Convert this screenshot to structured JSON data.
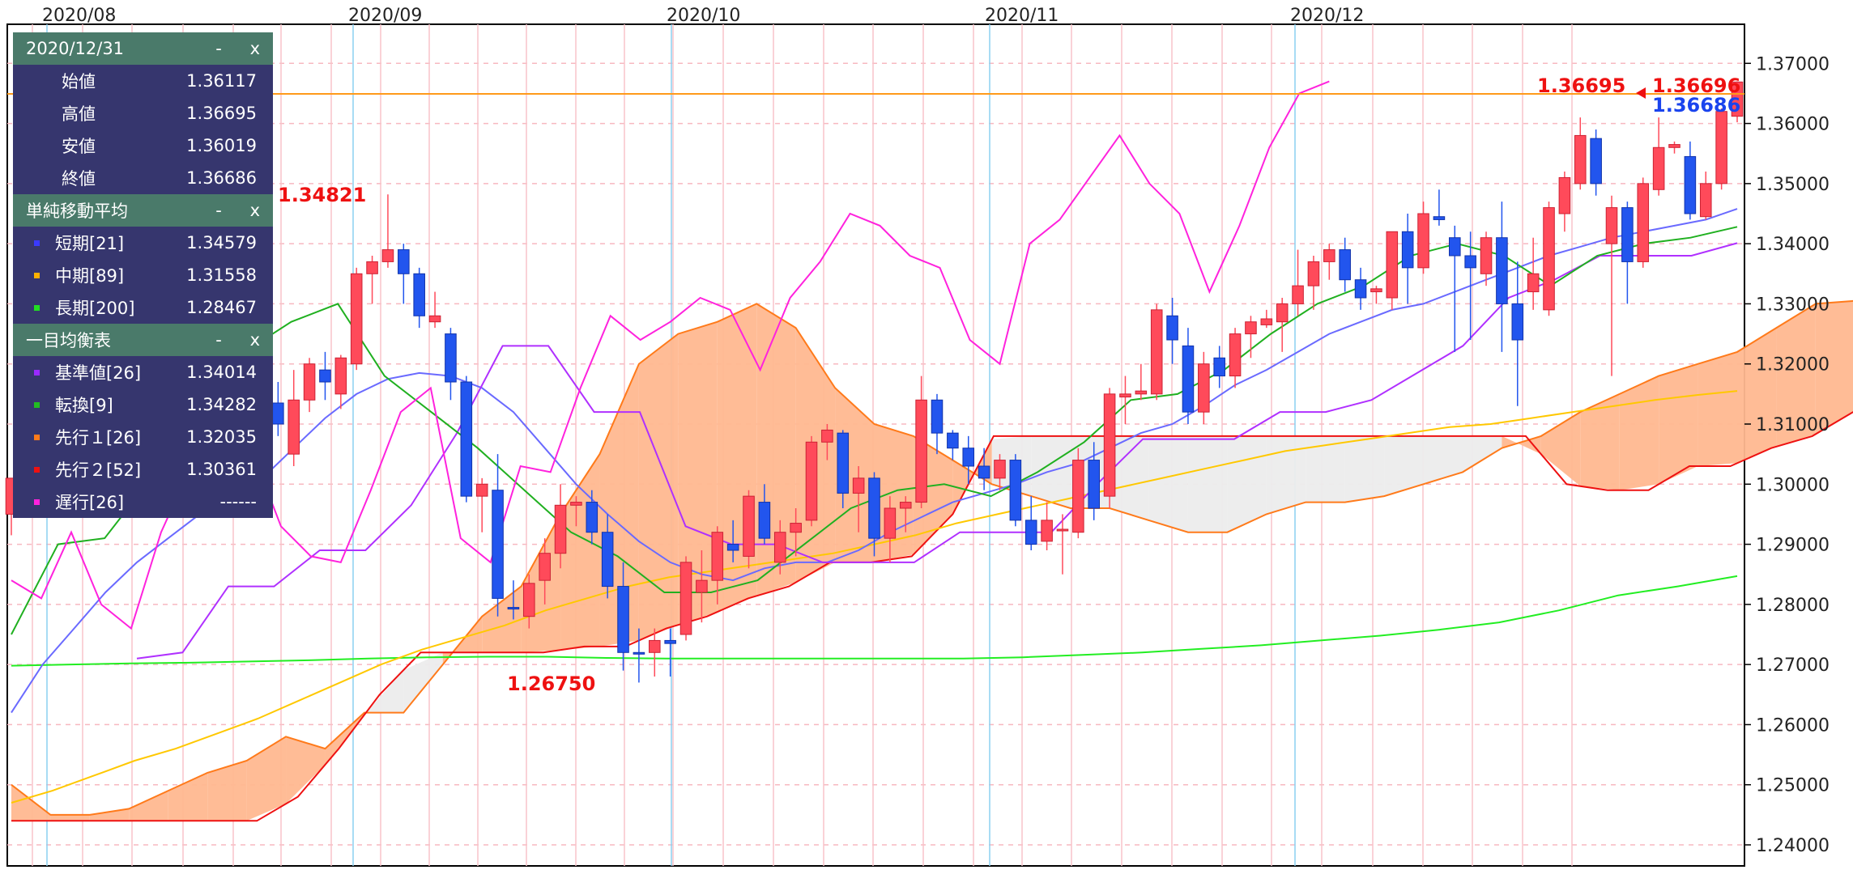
{
  "panels": {
    "ohlc": {
      "title": "2020/12/31",
      "minimize": "-",
      "close": "x",
      "rows": [
        {
          "label": "始値",
          "value": "1.36117"
        },
        {
          "label": "高値",
          "value": "1.36695"
        },
        {
          "label": "安値",
          "value": "1.36019"
        },
        {
          "label": "終値",
          "value": "1.36686"
        }
      ]
    },
    "sma": {
      "title": "単純移動平均",
      "minimize": "-",
      "close": "x",
      "rows": [
        {
          "label": "短期[21]",
          "value": "1.34579",
          "color": "#3a3aff"
        },
        {
          "label": "中期[89]",
          "value": "1.31558",
          "color": "#ffb000"
        },
        {
          "label": "長期[200]",
          "value": "1.28467",
          "color": "#22dd22"
        }
      ]
    },
    "ichimoku": {
      "title": "一目均衡表",
      "minimize": "-",
      "close": "x",
      "rows": [
        {
          "label": "基準値[26]",
          "value": "1.34014",
          "color": "#9a2aff"
        },
        {
          "label": "転換[9]",
          "value": "1.34282",
          "color": "#22bb22"
        },
        {
          "label": "先行１[26]",
          "value": "1.32035",
          "color": "#ff7a1a"
        },
        {
          "label": "先行２[52]",
          "value": "1.30361",
          "color": "#ee1111"
        },
        {
          "label": "遅行[26]",
          "value": "------",
          "color": "#ff22dd"
        }
      ]
    }
  },
  "annotations": {
    "high_label": "1.34821",
    "low_label": "1.26750",
    "last_high_label": "1.36695",
    "price_tag_high": "1.36696",
    "price_tag_close": "1.36686"
  },
  "chart_data": {
    "type": "candlestick",
    "x_tick_labels": [
      "2020/08",
      "2020/09",
      "2020/10",
      "2020/11",
      "2020/12"
    ],
    "y_ticks": [
      "1.24000",
      "1.25000",
      "1.26000",
      "1.27000",
      "1.28000",
      "1.29000",
      "1.30000",
      "1.31000",
      "1.32000",
      "1.33000",
      "1.34000",
      "1.35000",
      "1.36000",
      "1.37000"
    ],
    "ylim": [
      1.2365,
      1.3765
    ],
    "grid": true,
    "colors": {
      "up": "#ff4a5a",
      "down": "#2255ee",
      "cloud": "#ffb890",
      "cloud_neg": "#ececec",
      "sma_short": "#6a6aff",
      "sma_mid": "#ffc800",
      "sma_long": "#22ee22",
      "kijun": "#b030ff",
      "tenkan": "#20b020",
      "senkou1": "#ff7a1a",
      "senkou2": "#ee1111",
      "chikou": "#ff22dd",
      "hline": "#ff9a1a"
    },
    "candles": [
      [
        1.295,
        1.301,
        1.2915,
        1.301
      ],
      [
        1.3005,
        1.304,
        1.298,
        1.303
      ],
      [
        1.303,
        1.306,
        1.299,
        1.3
      ],
      [
        1.3,
        1.302,
        1.297,
        1.3015
      ],
      [
        1.3015,
        1.308,
        1.2995,
        1.307
      ],
      [
        1.307,
        1.311,
        1.304,
        1.305
      ],
      [
        1.305,
        1.311,
        1.3045,
        1.3095
      ],
      [
        1.3095,
        1.312,
        1.303,
        1.304
      ],
      [
        1.304,
        1.3065,
        1.3,
        1.3055
      ],
      [
        1.3055,
        1.312,
        1.305,
        1.311
      ],
      [
        1.311,
        1.314,
        1.304,
        1.306
      ],
      [
        1.306,
        1.314,
        1.303,
        1.313
      ],
      [
        1.313,
        1.317,
        1.305,
        1.315
      ],
      [
        1.306,
        1.31,
        1.303,
        1.308
      ],
      [
        1.308,
        1.314,
        1.305,
        1.313
      ],
      [
        1.312,
        1.315,
        1.307,
        1.309
      ],
      [
        1.308,
        1.319,
        1.307,
        1.318
      ],
      [
        1.3135,
        1.317,
        1.308,
        1.31
      ],
      [
        1.305,
        1.319,
        1.303,
        1.314
      ],
      [
        1.314,
        1.321,
        1.312,
        1.32
      ],
      [
        1.319,
        1.322,
        1.314,
        1.317
      ],
      [
        1.315,
        1.3215,
        1.3125,
        1.321
      ],
      [
        1.32,
        1.336,
        1.319,
        1.335
      ],
      [
        1.335,
        1.338,
        1.33,
        1.337
      ],
      [
        1.337,
        1.3482,
        1.336,
        1.339
      ],
      [
        1.339,
        1.34,
        1.33,
        1.335
      ],
      [
        1.335,
        1.336,
        1.326,
        1.328
      ],
      [
        1.327,
        1.332,
        1.326,
        1.328
      ],
      [
        1.325,
        1.326,
        1.314,
        1.317
      ],
      [
        1.317,
        1.318,
        1.297,
        1.298
      ],
      [
        1.298,
        1.301,
        1.292,
        1.3
      ],
      [
        1.299,
        1.305,
        1.278,
        1.281
      ],
      [
        1.2795,
        1.284,
        1.2775,
        1.2793
      ],
      [
        1.278,
        1.285,
        1.276,
        1.2835
      ],
      [
        1.284,
        1.291,
        1.28,
        1.2885
      ],
      [
        1.2885,
        1.3,
        1.286,
        1.2965
      ],
      [
        1.2965,
        1.298,
        1.293,
        1.297
      ],
      [
        1.297,
        1.299,
        1.29,
        1.292
      ],
      [
        1.292,
        1.295,
        1.281,
        1.283
      ],
      [
        1.283,
        1.287,
        1.269,
        1.272
      ],
      [
        1.272,
        1.276,
        1.267,
        1.2718
      ],
      [
        1.272,
        1.276,
        1.268,
        1.274
      ],
      [
        1.274,
        1.276,
        1.268,
        1.2735
      ],
      [
        1.275,
        1.288,
        1.274,
        1.287
      ],
      [
        1.282,
        1.289,
        1.277,
        1.284
      ],
      [
        1.284,
        1.293,
        1.28,
        1.292
      ],
      [
        1.29,
        1.294,
        1.287,
        1.289
      ],
      [
        1.288,
        1.299,
        1.286,
        1.298
      ],
      [
        1.297,
        1.3,
        1.29,
        1.291
      ],
      [
        1.287,
        1.294,
        1.285,
        1.292
      ],
      [
        1.292,
        1.296,
        1.288,
        1.2935
      ],
      [
        1.294,
        1.308,
        1.293,
        1.307
      ],
      [
        1.307,
        1.31,
        1.304,
        1.309
      ],
      [
        1.3085,
        1.309,
        1.296,
        1.2985
      ],
      [
        1.2985,
        1.303,
        1.292,
        1.301
      ],
      [
        1.301,
        1.302,
        1.288,
        1.291
      ],
      [
        1.291,
        1.298,
        1.287,
        1.296
      ],
      [
        1.296,
        1.298,
        1.292,
        1.297
      ],
      [
        1.297,
        1.318,
        1.296,
        1.314
      ],
      [
        1.314,
        1.315,
        1.305,
        1.3085
      ],
      [
        1.3085,
        1.309,
        1.304,
        1.306
      ],
      [
        1.306,
        1.308,
        1.3,
        1.303
      ],
      [
        1.303,
        1.306,
        1.299,
        1.301
      ],
      [
        1.301,
        1.305,
        1.299,
        1.304
      ],
      [
        1.304,
        1.305,
        1.293,
        1.294
      ],
      [
        1.294,
        1.298,
        1.289,
        1.29
      ],
      [
        1.2905,
        1.297,
        1.289,
        1.294
      ],
      [
        1.2925,
        1.295,
        1.285,
        1.2925
      ],
      [
        1.292,
        1.306,
        1.291,
        1.304
      ],
      [
        1.304,
        1.307,
        1.294,
        1.296
      ],
      [
        1.298,
        1.316,
        1.296,
        1.315
      ],
      [
        1.3145,
        1.318,
        1.31,
        1.315
      ],
      [
        1.315,
        1.32,
        1.314,
        1.3155
      ],
      [
        1.315,
        1.33,
        1.314,
        1.329
      ],
      [
        1.328,
        1.331,
        1.32,
        1.324
      ],
      [
        1.323,
        1.326,
        1.31,
        1.312
      ],
      [
        1.312,
        1.322,
        1.31,
        1.32
      ],
      [
        1.321,
        1.323,
        1.316,
        1.318
      ],
      [
        1.318,
        1.326,
        1.316,
        1.325
      ],
      [
        1.325,
        1.328,
        1.321,
        1.327
      ],
      [
        1.3265,
        1.329,
        1.326,
        1.3275
      ],
      [
        1.327,
        1.331,
        1.322,
        1.33
      ],
      [
        1.33,
        1.339,
        1.328,
        1.333
      ],
      [
        1.333,
        1.338,
        1.329,
        1.337
      ],
      [
        1.337,
        1.34,
        1.334,
        1.339
      ],
      [
        1.339,
        1.341,
        1.332,
        1.334
      ],
      [
        1.334,
        1.336,
        1.329,
        1.331
      ],
      [
        1.332,
        1.333,
        1.33,
        1.3325
      ],
      [
        1.331,
        1.342,
        1.329,
        1.342
      ],
      [
        1.342,
        1.345,
        1.33,
        1.336
      ],
      [
        1.336,
        1.347,
        1.335,
        1.345
      ],
      [
        1.3445,
        1.349,
        1.343,
        1.344
      ],
      [
        1.341,
        1.343,
        1.322,
        1.338
      ],
      [
        1.338,
        1.342,
        1.324,
        1.336
      ],
      [
        1.335,
        1.342,
        1.333,
        1.341
      ],
      [
        1.341,
        1.347,
        1.322,
        1.33
      ],
      [
        1.33,
        1.337,
        1.313,
        1.324
      ],
      [
        1.332,
        1.341,
        1.329,
        1.335
      ],
      [
        1.329,
        1.347,
        1.328,
        1.346
      ],
      [
        1.345,
        1.352,
        1.342,
        1.351
      ],
      [
        1.35,
        1.361,
        1.349,
        1.358
      ],
      [
        1.3575,
        1.359,
        1.348,
        1.35
      ],
      [
        1.34,
        1.348,
        1.318,
        1.346
      ],
      [
        1.346,
        1.347,
        1.33,
        1.337
      ],
      [
        1.337,
        1.351,
        1.336,
        1.35
      ],
      [
        1.349,
        1.361,
        1.348,
        1.356
      ],
      [
        1.356,
        1.357,
        1.355,
        1.3565
      ],
      [
        1.3545,
        1.357,
        1.344,
        1.345
      ],
      [
        1.3445,
        1.352,
        1.344,
        1.35
      ],
      [
        1.35,
        1.3625,
        1.349,
        1.362
      ],
      [
        1.3612,
        1.367,
        1.3602,
        1.3669
      ]
    ],
    "sma_short": [
      1.262,
      1.27,
      1.276,
      1.282,
      1.287,
      1.291,
      1.295,
      1.298,
      1.301,
      1.306,
      1.311,
      1.315,
      1.3175,
      1.3185,
      1.318,
      1.316,
      1.312,
      1.306,
      1.3,
      1.295,
      1.2905,
      1.287,
      1.285,
      1.284,
      1.286,
      1.287,
      1.287,
      1.289,
      1.292,
      1.2945,
      1.297,
      1.2985,
      1.3,
      1.302,
      1.3035,
      1.306,
      1.3085,
      1.31,
      1.313,
      1.3165,
      1.319,
      1.322,
      1.325,
      1.327,
      1.329,
      1.33,
      1.332,
      1.334,
      1.336,
      1.338,
      1.3395,
      1.341,
      1.342,
      1.343,
      1.344,
      1.3458
    ],
    "sma_mid": [
      1.247,
      1.249,
      1.2515,
      1.254,
      1.256,
      1.2585,
      1.261,
      1.264,
      1.267,
      1.27,
      1.2725,
      1.2745,
      1.2765,
      1.279,
      1.281,
      1.283,
      1.2845,
      1.2855,
      1.2865,
      1.2875,
      1.2885,
      1.29,
      1.2915,
      1.2935,
      1.295,
      1.2965,
      1.298,
      1.2995,
      1.301,
      1.3025,
      1.304,
      1.3055,
      1.3065,
      1.3075,
      1.3085,
      1.3095,
      1.31,
      1.311,
      1.312,
      1.313,
      1.314,
      1.3148,
      1.3155
    ],
    "sma_long": [
      1.2698,
      1.27,
      1.2702,
      1.2703,
      1.2705,
      1.2707,
      1.271,
      1.2712,
      1.2713,
      1.2713,
      1.2711,
      1.271,
      1.271,
      1.271,
      1.271,
      1.271,
      1.271,
      1.2712,
      1.2716,
      1.272,
      1.2726,
      1.2732,
      1.274,
      1.2748,
      1.2758,
      1.277,
      1.279,
      1.2815,
      1.283,
      1.2847
    ],
    "kijun": [
      1.271,
      1.272,
      1.283,
      1.283,
      1.289,
      1.289,
      1.2965,
      1.3085,
      1.323,
      1.323,
      1.312,
      1.312,
      1.293,
      1.29,
      1.29,
      1.287,
      1.287,
      1.287,
      1.292,
      1.292,
      1.292,
      1.3,
      1.3075,
      1.3075,
      1.3075,
      1.312,
      1.312,
      1.314,
      1.3185,
      1.323,
      1.331,
      1.334,
      1.338,
      1.338,
      1.338,
      1.3401
    ],
    "tenkan": [
      1.275,
      1.29,
      1.291,
      1.301,
      1.308,
      1.322,
      1.327,
      1.33,
      1.318,
      1.312,
      1.306,
      1.299,
      1.292,
      1.288,
      1.282,
      1.282,
      1.284,
      1.29,
      1.296,
      1.299,
      1.3,
      1.298,
      1.302,
      1.307,
      1.314,
      1.315,
      1.319,
      1.325,
      1.33,
      1.333,
      1.338,
      1.34,
      1.338,
      1.333,
      1.338,
      1.34,
      1.341,
      1.3428
    ],
    "senkou1": [
      1.25,
      1.245,
      1.245,
      1.246,
      1.249,
      1.252,
      1.254,
      1.258,
      1.256,
      1.262,
      1.262,
      1.27,
      1.278,
      1.283,
      1.295,
      1.305,
      1.32,
      1.325,
      1.327,
      1.33,
      1.326,
      1.316,
      1.31,
      1.308,
      1.304,
      1.3,
      1.298,
      1.296,
      1.296,
      1.294,
      1.292,
      1.292,
      1.295,
      1.297,
      1.297,
      1.298,
      1.3,
      1.302,
      1.306,
      1.308,
      1.312,
      1.315,
      1.318,
      1.32,
      1.322,
      1.326,
      1.33,
      1.3305,
      1.326
    ],
    "senkou2": [
      1.244,
      1.244,
      1.244,
      1.244,
      1.244,
      1.244,
      1.244,
      1.248,
      1.256,
      1.265,
      1.272,
      1.272,
      1.272,
      1.272,
      1.273,
      1.273,
      1.276,
      1.278,
      1.281,
      1.283,
      1.287,
      1.287,
      1.288,
      1.295,
      1.308,
      1.308,
      1.308,
      1.308,
      1.308,
      1.308,
      1.308,
      1.308,
      1.308,
      1.308,
      1.308,
      1.308,
      1.308,
      1.308,
      1.3,
      1.299,
      1.299,
      1.303,
      1.303,
      1.306,
      1.308,
      1.312,
      1.315
    ],
    "chikou": [
      1.284,
      1.281,
      1.292,
      1.28,
      1.276,
      1.292,
      1.303,
      1.298,
      1.306,
      1.293,
      1.288,
      1.287,
      1.299,
      1.312,
      1.316,
      1.291,
      1.287,
      1.303,
      1.302,
      1.316,
      1.328,
      1.324,
      1.327,
      1.331,
      1.329,
      1.319,
      1.331,
      1.337,
      1.345,
      1.343,
      1.338,
      1.336,
      1.324,
      1.32,
      1.34,
      1.344,
      1.351,
      1.358,
      1.35,
      1.345,
      1.332,
      1.343,
      1.356,
      1.365,
      1.367
    ]
  }
}
